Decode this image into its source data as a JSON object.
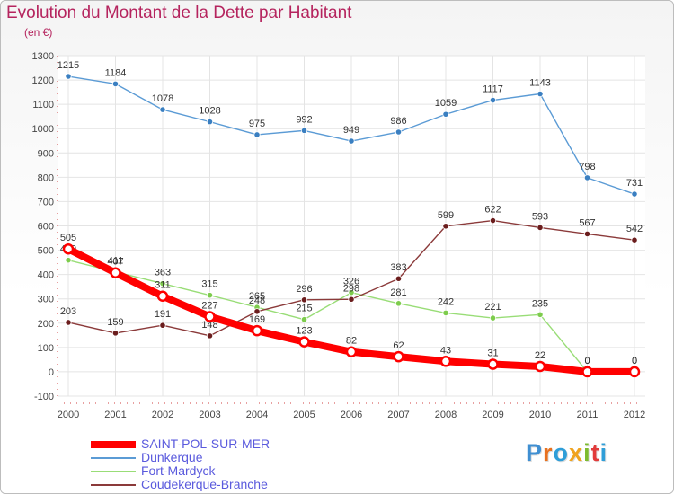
{
  "title": "Evolution du Montant de la Dette par Habitant",
  "subtitle": "(en €)",
  "logo": {
    "text": "Proxiti",
    "letter_colors": [
      "#3f8fd2",
      "#e8711f",
      "#2f9ed8",
      "#f0a31e",
      "#7dbb2f",
      "#e23b3b",
      "#2f9ed8"
    ]
  },
  "chart_data": {
    "type": "line",
    "title": "Evolution du Montant de la Dette par Habitant",
    "subtitle": "(en €)",
    "xlabel": "",
    "ylabel": "",
    "x": [
      "2000",
      "2001",
      "2002",
      "2003",
      "2004",
      "2005",
      "2006",
      "2007",
      "2008",
      "2009",
      "2010",
      "2011",
      "2012"
    ],
    "ylim": [
      -100,
      1300
    ],
    "yticks": [
      "-100",
      "0",
      "100",
      "200",
      "300",
      "400",
      "500",
      "600",
      "700",
      "800",
      "900",
      "1000",
      "1100",
      "1200",
      "1300"
    ],
    "grid": true,
    "legend_position": "bottom-left",
    "series": [
      {
        "name": "Dunkerque",
        "color": "#5b9bd5",
        "marker": "#3a7fc1",
        "values": [
          1215,
          1184,
          1078,
          1028,
          975,
          992,
          949,
          986,
          1059,
          1117,
          1143,
          798,
          731
        ],
        "labels": [
          "1215",
          "1184",
          "1078",
          "1028",
          "975",
          "992",
          "949",
          "986",
          "1059",
          "1117",
          "1143",
          "798",
          "731"
        ]
      },
      {
        "name": "Fort-Mardyck",
        "color": "#99dd77",
        "marker": "#7dcc4c",
        "values": [
          459,
          411,
          363,
          315,
          265,
          215,
          326,
          281,
          242,
          221,
          235,
          0,
          0
        ],
        "labels": [
          "459",
          "411",
          "363",
          "315",
          "265",
          "215",
          "326",
          "281",
          "242",
          "221",
          "235",
          "0",
          "0"
        ]
      },
      {
        "name": "Coudekerque-Branche",
        "color": "#8b3a3a",
        "marker": "#6b1d1d",
        "values": [
          203,
          159,
          191,
          148,
          248,
          296,
          298,
          383,
          599,
          622,
          593,
          567,
          542
        ],
        "labels": [
          "203",
          "159",
          "191",
          "148",
          "248",
          "296",
          "298",
          "383",
          "599",
          "622",
          "593",
          "567",
          "542"
        ]
      },
      {
        "name": "SAINT-POL-SUR-MER",
        "color": "#ff0000",
        "marker": "#ff0000",
        "values": [
          505,
          407,
          311,
          227,
          169,
          123,
          82,
          62,
          43,
          31,
          22,
          0,
          0
        ],
        "labels": [
          "505",
          "407",
          "311",
          "227",
          "169",
          "123",
          "82",
          "62",
          "43",
          "31",
          "22",
          "0",
          "0"
        ]
      }
    ]
  },
  "legend": [
    {
      "name": "SAINT-POL-SUR-MER",
      "color": "#ff0000"
    },
    {
      "name": "Dunkerque",
      "color": "#5b9bd5"
    },
    {
      "name": "Fort-Mardyck",
      "color": "#99dd77"
    },
    {
      "name": "Coudekerque-Branche",
      "color": "#8b3a3a"
    }
  ]
}
